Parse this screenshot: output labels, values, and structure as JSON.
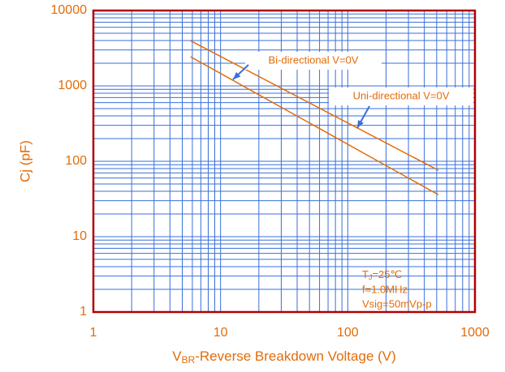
{
  "chart_data": {
    "type": "line",
    "ylabel": "Cj (pF)",
    "xlabel": {
      "main": "V",
      "subscript": "BR",
      "rest": "-Reverse Breakdown Voltage (V)"
    },
    "series": [
      {
        "name": "Uni-directional V=0V",
        "color": "#e36c09",
        "x": [
          5.8,
          515
        ],
        "values": [
          3980,
          76
        ]
      },
      {
        "name": "Bi-directional V=0V",
        "color": "#e36c09",
        "x": [
          5.8,
          515
        ],
        "values": [
          2440,
          36
        ]
      }
    ],
    "conditions": {
      "temperature": {
        "symbol": "T",
        "subscript": "J",
        "rest": "=25℃"
      },
      "lines": [
        "f=1.0MHz",
        "Vsig=50mVp-p"
      ]
    },
    "xlim": [
      1,
      1000
    ],
    "ylim": [
      1,
      10000
    ],
    "xticks": [
      1,
      10,
      100,
      1000
    ],
    "yticks": [
      1,
      10,
      100,
      1000,
      10000
    ],
    "xscale": "log",
    "yscale": "log",
    "grid": true,
    "minor_grid": true,
    "grid_color": "#3a6fd8",
    "frame_color": "#b00000",
    "text_color": "#e36c09"
  }
}
